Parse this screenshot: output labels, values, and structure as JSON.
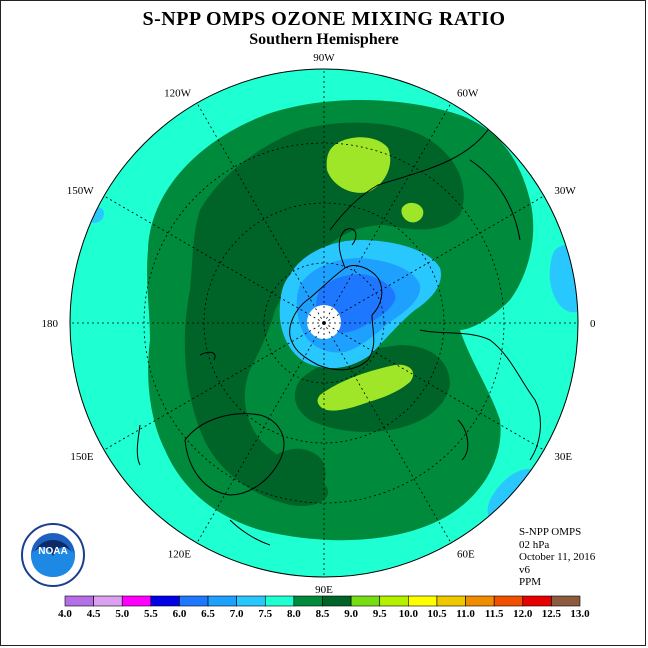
{
  "title": "S-NPP OMPS OZONE MIXING RATIO",
  "subtitle": "Southern Hemisphere",
  "longitude_labels": [
    {
      "text": "90W",
      "lon": 90
    },
    {
      "text": "60W",
      "lon": 60
    },
    {
      "text": "30W",
      "lon": 30
    },
    {
      "text": "0",
      "lon": 0
    },
    {
      "text": "30E",
      "lon": -30
    },
    {
      "text": "60E",
      "lon": -60
    },
    {
      "text": "90E",
      "lon": -90
    },
    {
      "text": "120E",
      "lon": -120
    },
    {
      "text": "150E",
      "lon": -150
    },
    {
      "text": "180",
      "lon": 180
    },
    {
      "text": "150W",
      "lon": 150
    },
    {
      "text": "120W",
      "lon": 120
    }
  ],
  "info": {
    "instrument": "S-NPP OMPS",
    "level": "02 hPa",
    "date": "October 11, 2016",
    "version": "v6",
    "units": "PPM"
  },
  "logo": {
    "text": "NOAA",
    "icon": "noaa-logo-icon"
  },
  "colorbar": {
    "ticks": [
      "4.0",
      "4.5",
      "5.0",
      "5.5",
      "6.0",
      "6.5",
      "7.0",
      "7.5",
      "8.0",
      "8.5",
      "9.0",
      "9.5",
      "10.0",
      "10.5",
      "11.0",
      "11.5",
      "12.0",
      "12.5",
      "13.0"
    ],
    "colors": [
      "#b46ee6",
      "#dca0f0",
      "#ff00ff",
      "#0000e6",
      "#1e78ff",
      "#1ea0ff",
      "#28c8ff",
      "#1effd2",
      "#008a3c",
      "#006428",
      "#78dc14",
      "#b4f000",
      "#ffff00",
      "#f0c800",
      "#f08c00",
      "#f05000",
      "#e60000",
      "#8c5a3c"
    ]
  },
  "map_colors": {
    "bg": "#1effd2",
    "band_85": "#008a3c",
    "band_90": "#006428",
    "band_95": "#a0e628",
    "band_75": "#28c8ff",
    "band_70": "#1ea0ff",
    "band_65": "#1e78ff"
  }
}
